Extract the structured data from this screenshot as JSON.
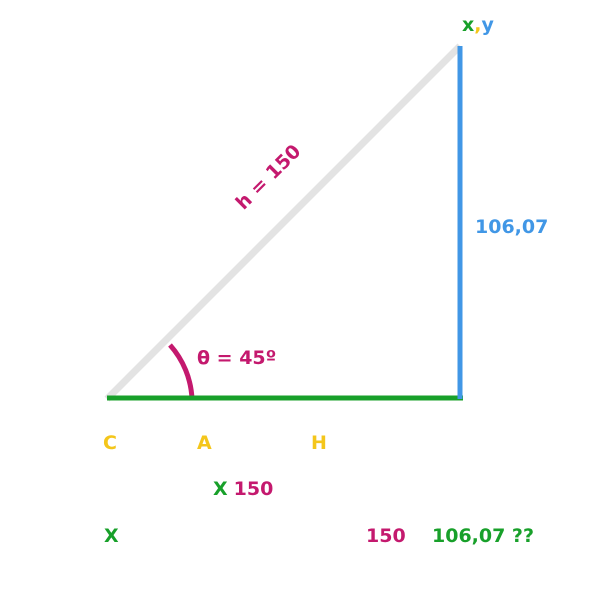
{
  "colors": {
    "hypotenuse": "#e3e3e3",
    "adjacent": "#18a02a",
    "opposite": "#4197e6",
    "angle": "#c4196e",
    "label_yellow": "#f4c61b",
    "label_green": "#18a02a",
    "label_blue": "#4197e6",
    "label_magenta": "#c4196e"
  },
  "vertex_label": {
    "x": "x",
    "comma": ",",
    "y": "y"
  },
  "opposite_label": "106,07",
  "hypotenuse_label": "h = 150",
  "angle_label": "θ = 45º",
  "formula_labels": {
    "c": "C",
    "a": "A",
    "h": "H"
  },
  "multiply_row": {
    "x": "X",
    "value": "150"
  },
  "result_row": {
    "x": "X",
    "value": "150",
    "result": "106,07 ??"
  }
}
